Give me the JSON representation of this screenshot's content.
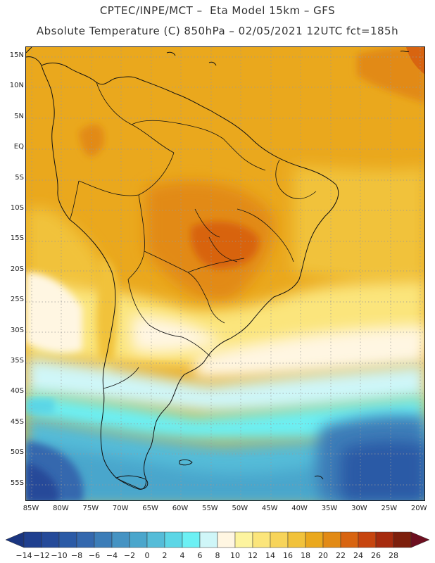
{
  "header": {
    "line1": "CPTEC/INPE/MCT –  Eta Model 15km – GFS",
    "line2": "Absolute Temperature (C) 850hPa – 02/05/2021 12UTC fct=185h"
  },
  "map": {
    "lat_labels": [
      "15N",
      "10N",
      "5N",
      "EQ",
      "5S",
      "10S",
      "15S",
      "20S",
      "25S",
      "30S",
      "35S",
      "40S",
      "45S",
      "50S",
      "55S"
    ],
    "lon_labels": [
      "85W",
      "80W",
      "75W",
      "70W",
      "65W",
      "60W",
      "55W",
      "50W",
      "45W",
      "40W",
      "35W",
      "30W",
      "25W",
      "20W"
    ],
    "grid": "dotted"
  },
  "colorbar": {
    "labels": [
      "-14",
      "-12",
      "-10",
      "-8",
      "-6",
      "-4",
      "-2",
      "0",
      "2",
      "4",
      "6",
      "8",
      "10",
      "12",
      "14",
      "16",
      "18",
      "20",
      "22",
      "24",
      "26",
      "28"
    ],
    "colors": [
      "#1f3f8f",
      "#254a99",
      "#2b5aa6",
      "#3468ae",
      "#3c7db8",
      "#4593c3",
      "#4aa6cc",
      "#55bcd8",
      "#5cd6e6",
      "#6cf0f4",
      "#cff6f8",
      "#fff6e2",
      "#fdf49f",
      "#fbe57b",
      "#f7d45a",
      "#f1c23b",
      "#eaa81d",
      "#e28a15",
      "#d86410",
      "#c7450f",
      "#a62b0e",
      "#7d1f0c"
    ],
    "under_color": "#1a3580",
    "over_color": "#6d0f20"
  }
}
